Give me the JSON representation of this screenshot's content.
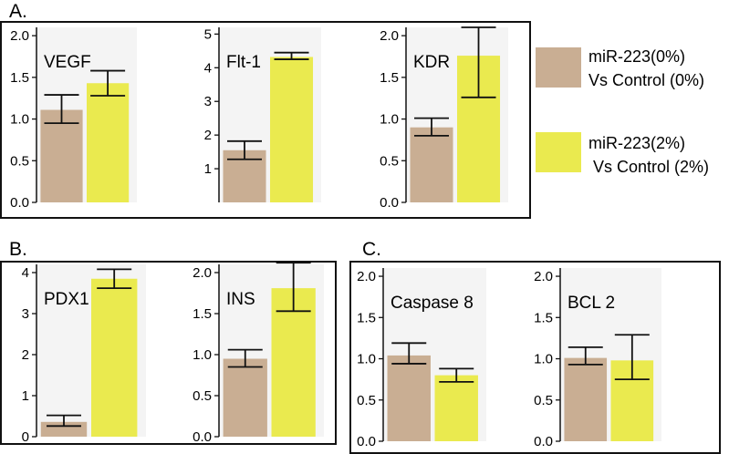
{
  "panels": [
    {
      "label": "A."
    },
    {
      "label": "B."
    },
    {
      "label": "C."
    }
  ],
  "legend": [
    {
      "color": "#c9ae93",
      "lines": [
        "miR-223(0%)",
        "Vs Control (0%)"
      ]
    },
    {
      "color": "#eaea4f",
      "lines": [
        "miR-223(2%)",
        "Vs Control (2%)"
      ]
    }
  ],
  "colors": {
    "series0": "#c9ae93",
    "series1": "#eaea4f",
    "plot_bg": "#f4f4f4"
  },
  "chart_data": [
    {
      "type": "bar",
      "panel": "A.",
      "title": "VEGF",
      "ylim": [
        0,
        2.1
      ],
      "yticks": [
        "0.0",
        "0.5",
        "1.0",
        "1.5",
        "2.0"
      ],
      "values": [
        1.11,
        1.43
      ],
      "errors": [
        [
          0.95,
          1.29
        ],
        [
          1.28,
          1.58
        ]
      ]
    },
    {
      "type": "bar",
      "panel": "A.",
      "title": "Flt-1",
      "ylim": [
        0,
        5.2
      ],
      "yticks": [
        "1",
        "2",
        "3",
        "4",
        "5"
      ],
      "values": [
        1.55,
        4.32
      ],
      "errors": [
        [
          1.28,
          1.82
        ],
        [
          4.25,
          4.45
        ]
      ]
    },
    {
      "type": "bar",
      "panel": "A.",
      "title": "KDR",
      "ylim": [
        0,
        2.1
      ],
      "yticks": [
        "0.0",
        "0.5",
        "1.0",
        "1.5",
        "2.0"
      ],
      "values": [
        0.9,
        1.76
      ],
      "errors": [
        [
          0.8,
          1.01
        ],
        [
          1.26,
          2.1
        ]
      ]
    },
    {
      "type": "bar",
      "panel": "B.",
      "title": "PDX1",
      "ylim": [
        0,
        4.2
      ],
      "yticks": [
        "0",
        "1",
        "2",
        "3",
        "4"
      ],
      "values": [
        0.36,
        3.85
      ],
      "errors": [
        [
          0.26,
          0.52
        ],
        [
          3.62,
          4.08
        ]
      ]
    },
    {
      "type": "bar",
      "panel": "B.",
      "title": "INS",
      "ylim": [
        0,
        2.1
      ],
      "yticks": [
        "0.0",
        "0.5",
        "1.0",
        "1.5",
        "2.0"
      ],
      "values": [
        0.95,
        1.81
      ],
      "errors": [
        [
          0.85,
          1.06
        ],
        [
          1.53,
          2.12
        ]
      ]
    },
    {
      "type": "bar",
      "panel": "C.",
      "title": "Caspase 8",
      "ylim": [
        0,
        2.1
      ],
      "yticks": [
        "0.0",
        "0.5",
        "1.0",
        "1.5",
        "2.0"
      ],
      "values": [
        1.04,
        0.8
      ],
      "errors": [
        [
          0.94,
          1.19
        ],
        [
          0.72,
          0.88
        ]
      ]
    },
    {
      "type": "bar",
      "panel": "C.",
      "title": "BCL 2",
      "ylim": [
        0,
        2.1
      ],
      "yticks": [
        "0.0",
        "0.5",
        "1.0",
        "1.5",
        "2.0"
      ],
      "values": [
        1.01,
        0.98
      ],
      "errors": [
        [
          0.93,
          1.14
        ],
        [
          0.75,
          1.29
        ]
      ]
    }
  ]
}
